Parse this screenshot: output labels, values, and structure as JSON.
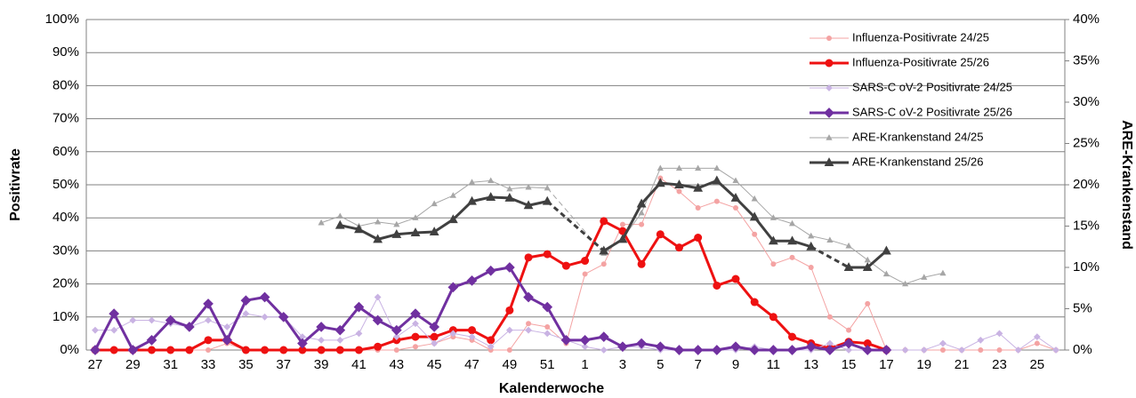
{
  "chart_data": {
    "type": "line",
    "xlabel": "Kalenderwoche",
    "ylabel": "Positivrate",
    "y2label": "ARE-Krankenstand",
    "categories": [
      "27",
      null,
      "29",
      null,
      "31",
      null,
      "33",
      null,
      "35",
      null,
      "37",
      null,
      "39",
      null,
      "41",
      null,
      "43",
      null,
      "45",
      null,
      "47",
      null,
      "49",
      null,
      "51",
      null,
      "1",
      null,
      "3",
      null,
      "5",
      null,
      "7",
      null,
      "9",
      null,
      "11",
      null,
      "13",
      null,
      "15",
      null,
      "17",
      null,
      "19",
      null,
      "21",
      null,
      "23",
      null,
      "25",
      null
    ],
    "ylim": [
      0,
      100
    ],
    "yticks": [
      {
        "value": 0,
        "label": "0%"
      },
      {
        "value": 10,
        "label": "10%"
      },
      {
        "value": 20,
        "label": "20%"
      },
      {
        "value": 30,
        "label": "30%"
      },
      {
        "value": 40,
        "label": "40%"
      },
      {
        "value": 50,
        "label": "50%"
      },
      {
        "value": 60,
        "label": "60%"
      },
      {
        "value": 70,
        "label": "70%"
      },
      {
        "value": 80,
        "label": "80%"
      },
      {
        "value": 90,
        "label": "90%"
      },
      {
        "value": 100,
        "label": "100%"
      }
    ],
    "y2lim": [
      0,
      40
    ],
    "y2ticks": [
      {
        "value": 0,
        "label": "0%"
      },
      {
        "value": 5,
        "label": "5%"
      },
      {
        "value": 10,
        "label": "10%"
      },
      {
        "value": 15,
        "label": "15%"
      },
      {
        "value": 20,
        "label": "20%"
      },
      {
        "value": 25,
        "label": "25%"
      },
      {
        "value": 30,
        "label": "30%"
      },
      {
        "value": 35,
        "label": "35%"
      },
      {
        "value": 40,
        "label": "40%"
      }
    ],
    "grid": true,
    "legend": "upper right",
    "series": [
      {
        "name": "Influenza-Positivrate 24/25",
        "color": "#f4a3a3",
        "marker": "circle",
        "line_width": 1,
        "values": [
          0,
          0,
          0,
          0,
          0,
          0,
          0,
          2,
          0,
          0,
          0,
          0,
          0,
          0,
          0,
          0,
          0,
          1,
          2,
          4,
          3,
          0,
          0,
          8,
          7,
          2,
          23,
          26,
          38,
          38,
          52,
          48,
          43,
          45,
          43,
          35,
          26,
          28,
          25,
          10,
          6,
          14,
          0,
          0,
          0,
          0,
          0,
          0,
          0,
          0,
          2,
          0
        ]
      },
      {
        "name": "Influenza-Positivrate 25/26",
        "color": "#ee1111",
        "marker": "circle",
        "line_width": 3,
        "values": [
          0,
          0,
          0,
          0,
          0,
          0,
          3,
          3,
          0,
          0,
          0,
          0,
          0,
          0,
          0,
          1,
          3,
          4,
          4,
          6,
          6,
          3,
          12,
          28,
          29,
          25.5,
          27,
          39,
          36,
          26,
          35,
          31,
          34,
          19.5,
          21.5,
          14.5,
          10,
          4,
          2,
          0.5,
          2.5,
          2,
          0,
          null,
          null,
          null,
          null,
          null,
          null,
          null,
          null,
          null
        ]
      },
      {
        "name": "SARS-C oV-2 Positivrate 24/25",
        "color": "#c9b3e3",
        "marker": "diamond",
        "line_width": 1,
        "values": [
          6,
          6,
          9,
          9,
          8,
          7,
          9,
          7,
          11,
          10,
          10,
          4,
          3,
          3,
          5,
          16,
          4,
          8,
          2,
          5,
          4,
          1,
          6,
          6,
          5,
          3,
          1,
          0,
          1,
          1,
          0,
          0,
          0,
          0,
          0,
          1,
          0,
          0,
          0,
          2,
          0,
          0,
          0,
          0,
          0,
          2,
          0,
          3,
          5,
          0,
          4,
          0
        ]
      },
      {
        "name": "SARS-C oV-2 Positivrate 25/26",
        "color": "#7030a0",
        "marker": "diamond",
        "line_width": 3,
        "values": [
          0,
          11,
          0,
          3,
          9,
          7,
          14,
          3,
          15,
          16,
          10,
          2,
          7,
          6,
          13,
          9,
          6,
          11,
          7,
          19,
          21,
          24,
          25,
          16,
          13,
          3,
          3,
          4,
          1,
          2,
          1,
          0,
          0,
          0,
          1,
          0,
          0,
          0,
          1,
          0,
          2,
          0,
          0,
          null,
          null,
          null,
          null,
          null,
          null,
          null,
          null,
          null
        ]
      },
      {
        "name": "ARE-Krankenstand 24/25",
        "color": "#a6a6a6",
        "marker": "triangle",
        "line_width": 1,
        "axis": "y2",
        "gap_dash": true,
        "values": [
          null,
          null,
          null,
          null,
          null,
          null,
          null,
          null,
          null,
          null,
          null,
          null,
          15.4,
          16.2,
          15,
          15.5,
          15.2,
          16,
          17.7,
          18.7,
          20.3,
          20.5,
          19.5,
          19.7,
          19.6,
          null,
          null,
          11.7,
          13.5,
          16.6,
          22,
          22,
          22,
          22,
          20.5,
          18.3,
          16,
          15.3,
          13.8,
          13.3,
          12.6,
          10.9,
          9.2,
          8,
          8.8,
          9.3,
          null,
          null,
          null,
          null,
          null,
          null
        ]
      },
      {
        "name": "ARE-Krankenstand 25/26",
        "color": "#404040",
        "marker": "triangle",
        "line_width": 3,
        "axis": "y2",
        "gap_dash": true,
        "values": [
          null,
          null,
          null,
          null,
          null,
          null,
          null,
          null,
          null,
          null,
          null,
          null,
          null,
          15.1,
          14.6,
          13.4,
          14,
          14.2,
          14.3,
          15.8,
          18,
          18.5,
          18.4,
          17.5,
          18,
          null,
          null,
          12,
          13.4,
          17.7,
          20.2,
          20,
          19.6,
          20.5,
          18.4,
          16.1,
          13.2,
          13.2,
          12.5,
          null,
          10,
          10,
          12,
          null,
          null,
          null,
          null,
          null,
          null,
          null,
          null,
          null
        ]
      }
    ]
  }
}
